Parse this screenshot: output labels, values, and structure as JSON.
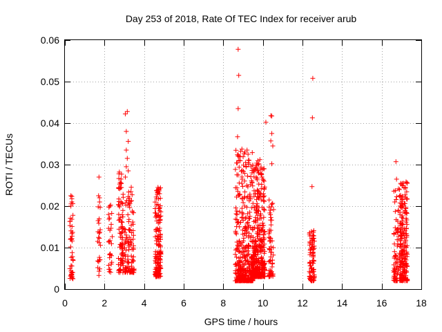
{
  "chart_data": {
    "type": "scatter",
    "title": "Day 253 of 2018, Rate Of TEC Index for receiver arub",
    "xlabel": "GPS time / hours",
    "ylabel": "ROTI / TECUs",
    "xlim": [
      0,
      18
    ],
    "ylim": [
      0,
      0.06
    ],
    "xticks": [
      "0",
      "2",
      "4",
      "6",
      "8",
      "10",
      "12",
      "14",
      "16",
      "18"
    ],
    "yticks": [
      "0",
      "0.01",
      "0.02",
      "0.03",
      "0.04",
      "0.05",
      "0.06"
    ],
    "grid": true,
    "marker": "+",
    "marker_color": "#ff0000",
    "clusters": [
      {
        "x_range": [
          0.25,
          0.42
        ],
        "y_range": [
          0.0025,
          0.0225
        ],
        "count": 45,
        "bias": 1.6
      },
      {
        "x_range": [
          1.65,
          1.8
        ],
        "y_range": [
          0.003,
          0.0225
        ],
        "count": 24,
        "bias": 1.3
      },
      {
        "x_range": [
          2.2,
          2.4
        ],
        "y_range": [
          0.004,
          0.0205
        ],
        "count": 30,
        "bias": 1.3
      },
      {
        "x_range": [
          2.7,
          2.95
        ],
        "y_range": [
          0.004,
          0.028
        ],
        "count": 90,
        "bias": 1.7
      },
      {
        "x_range": [
          3.0,
          3.5
        ],
        "y_range": [
          0.004,
          0.025
        ],
        "count": 110,
        "bias": 2.2
      },
      {
        "x_range": [
          4.55,
          4.85
        ],
        "y_range": [
          0.003,
          0.0245
        ],
        "count": 160,
        "bias": 1.8
      },
      {
        "x_range": [
          8.6,
          9.5
        ],
        "y_range": [
          0.002,
          0.034
        ],
        "count": 420,
        "bias": 2.8
      },
      {
        "x_range": [
          9.5,
          10.1
        ],
        "y_range": [
          0.003,
          0.031
        ],
        "count": 360,
        "bias": 2.2
      },
      {
        "x_range": [
          10.3,
          10.55
        ],
        "y_range": [
          0.003,
          0.0215
        ],
        "count": 60,
        "bias": 1.8
      },
      {
        "x_range": [
          12.35,
          12.6
        ],
        "y_range": [
          0.002,
          0.016
        ],
        "count": 90,
        "bias": 1.9
      },
      {
        "x_range": [
          16.6,
          16.85
        ],
        "y_range": [
          0.002,
          0.026
        ],
        "count": 70,
        "bias": 2.0
      },
      {
        "x_range": [
          16.9,
          17.3
        ],
        "y_range": [
          0.002,
          0.026
        ],
        "count": 200,
        "bias": 1.8
      }
    ],
    "points": [
      [
        0.3,
        0.0225
      ],
      [
        0.35,
        0.021
      ],
      [
        0.3,
        0.02
      ],
      [
        1.72,
        0.027
      ],
      [
        1.7,
        0.0225
      ],
      [
        1.75,
        0.021
      ],
      [
        2.75,
        0.0282
      ],
      [
        2.85,
        0.0255
      ],
      [
        3.05,
        0.0422
      ],
      [
        3.15,
        0.0428
      ],
      [
        3.1,
        0.038
      ],
      [
        3.2,
        0.0356
      ],
      [
        3.1,
        0.0335
      ],
      [
        3.15,
        0.0315
      ],
      [
        3.1,
        0.0295
      ],
      [
        3.2,
        0.0285
      ],
      [
        3.05,
        0.027
      ],
      [
        4.7,
        0.0245
      ],
      [
        4.75,
        0.024
      ],
      [
        8.75,
        0.0578
      ],
      [
        8.78,
        0.0515
      ],
      [
        8.75,
        0.0435
      ],
      [
        8.72,
        0.0367
      ],
      [
        8.75,
        0.0275
      ],
      [
        9.2,
        0.0335
      ],
      [
        9.25,
        0.0325
      ],
      [
        9.3,
        0.031
      ],
      [
        9.4,
        0.0295
      ],
      [
        9.45,
        0.028
      ],
      [
        9.85,
        0.0312
      ],
      [
        9.9,
        0.029
      ],
      [
        9.8,
        0.028
      ],
      [
        9.95,
        0.027
      ],
      [
        10.0,
        0.0265
      ],
      [
        10.15,
        0.0402
      ],
      [
        10.4,
        0.0418
      ],
      [
        10.45,
        0.0417
      ],
      [
        10.45,
        0.0375
      ],
      [
        10.4,
        0.0357
      ],
      [
        10.5,
        0.0345
      ],
      [
        10.45,
        0.0302
      ],
      [
        12.52,
        0.0508
      ],
      [
        12.5,
        0.0413
      ],
      [
        12.48,
        0.0247
      ],
      [
        16.72,
        0.0307
      ],
      [
        16.75,
        0.0265
      ],
      [
        16.9,
        0.024
      ],
      [
        17.05,
        0.025
      ],
      [
        17.1,
        0.0255
      ],
      [
        17.2,
        0.0245
      ]
    ]
  }
}
